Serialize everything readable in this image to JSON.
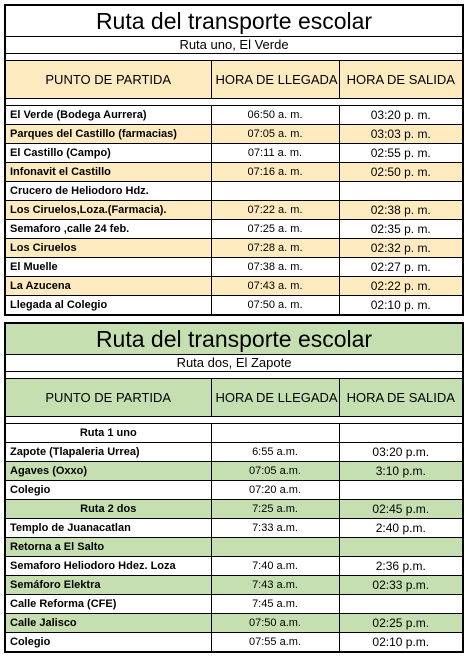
{
  "table1": {
    "title": "Ruta del transporte escolar",
    "subtitle": "Ruta uno, El Verde",
    "headers": [
      "PUNTO DE PARTIDA",
      "HORA DE LLEGADA",
      "HORA DE SALIDA"
    ],
    "rows": [
      {
        "place": "El Verde (Bodega Aurrera)",
        "arrive": "06:50 a. m.",
        "depart": "03:20  p. m."
      },
      {
        "place": "Parques del Castillo (farmacias)",
        "arrive": "07:05 a. m.",
        "depart": "03:03  p. m."
      },
      {
        "place": "El Castillo (Campo)",
        "arrive": "07:11 a. m.",
        "depart": "02:55  p. m."
      },
      {
        "place": "Infonavit el Castillo",
        "arrive": "07:16 a. m.",
        "depart": "02:50  p. m."
      },
      {
        "place": "Crucero de Heliodoro Hdz.",
        "arrive": "",
        "depart": ""
      },
      {
        "place": "Los Ciruelos,Loza.(Farmacia).",
        "arrive": "07:22 a. m.",
        "depart": "02:38  p. m."
      },
      {
        "place": "Semaforo ,calle 24 feb.",
        "arrive": "07:25 a. m.",
        "depart": "02:35  p. m."
      },
      {
        "place": "Los Ciruelos",
        "arrive": "07:28 a. m.",
        "depart": "02:32  p. m."
      },
      {
        "place": "El Muelle",
        "arrive": "07:38 a. m.",
        "depart": "02:27  p. m."
      },
      {
        "place": "La Azucena",
        "arrive": "07:43 a. m.",
        "depart": "02:22  p. m."
      },
      {
        "place": "Llegada al Colegio",
        "arrive": "07:50 a. m.",
        "depart": "02:10  p. m."
      }
    ]
  },
  "table2": {
    "title": "Ruta del transporte escolar",
    "subtitle": "Ruta dos, El Zapote",
    "headers": [
      "PUNTO DE PARTIDA",
      "HORA DE LLEGADA",
      "HORA DE SALIDA"
    ],
    "rows": [
      {
        "place": "Ruta 1 uno",
        "arrive": "",
        "depart": ""
      },
      {
        "place": "Zapote (Tlapaleria Urrea)",
        "arrive": "6:55 a.m.",
        "depart": "03:20 p.m."
      },
      {
        "place": "Agaves (Oxxo)",
        "arrive": "07:05 a.m.",
        "depart": "3:10 p.m."
      },
      {
        "place": "Colegio",
        "arrive": "07:20 a.m.",
        "depart": ""
      },
      {
        "place": "Ruta 2 dos",
        "arrive": "7:25 a.m.",
        "depart": "02:45 p.m."
      },
      {
        "place": "Templo de Juanacatlan",
        "arrive": "7:33 a.m.",
        "depart": "2:40 p.m."
      },
      {
        "place": "Retorna a El Salto",
        "arrive": "",
        "depart": ""
      },
      {
        "place": "Semaforo Heliodoro Hdez. Loza",
        "arrive": "7:40 a.m.",
        "depart": "2:36 p.m."
      },
      {
        "place": "Semáforo Elektra",
        "arrive": "7:43 a.m.",
        "depart": "02:33 p.m."
      },
      {
        "place": "Calle Reforma (CFE)",
        "arrive": "7:45 a.m.",
        "depart": ""
      },
      {
        "place": "Calle Jalisco",
        "arrive": "07:50 a.m.",
        "depart": "02:25 p.m."
      },
      {
        "place": "Colegio",
        "arrive": "07:55 a.m.",
        "depart": "02:10 p.m."
      }
    ]
  }
}
